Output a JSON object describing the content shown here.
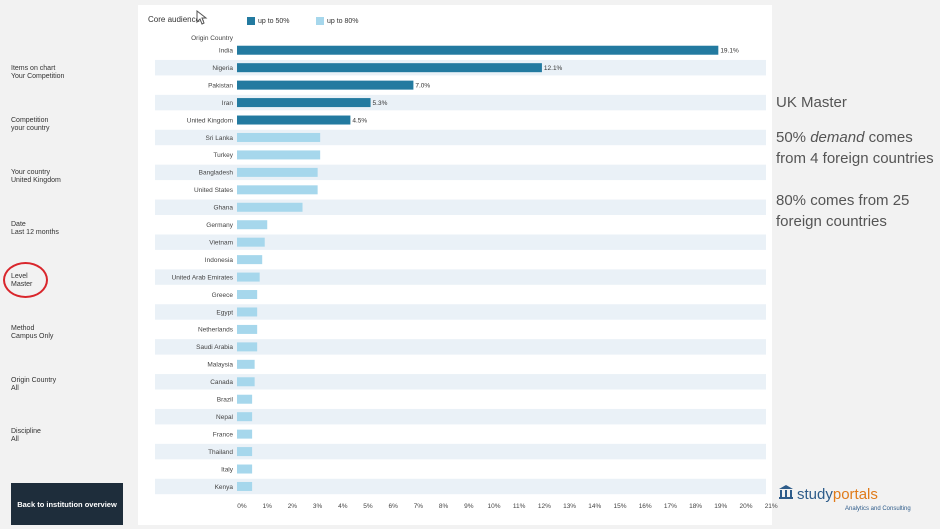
{
  "filters": [
    {
      "label": "Items on chart",
      "value": "Your Competition"
    },
    {
      "label": "Competition",
      "value": "your country"
    },
    {
      "label": "Your country",
      "value": "United Kingdom"
    },
    {
      "label": "Date",
      "value": "Last 12 months"
    },
    {
      "label": "Level",
      "value": "Master"
    },
    {
      "label": "Method",
      "value": "Campus Only"
    },
    {
      "label": "Origin Country",
      "value": "All"
    },
    {
      "label": "Discipline",
      "value": "All"
    }
  ],
  "back_button": "Back to institution overview",
  "legend": {
    "title": "Core audiences",
    "items": [
      {
        "label": "up to 50%",
        "color": "#237aa0"
      },
      {
        "label": "up to 80%",
        "color": "#a6d7ec"
      }
    ]
  },
  "row_header": "Origin Country",
  "commentary": {
    "heading": "UK Master",
    "line1_pre": "50% ",
    "line1_em": "demand",
    "line1_post": " comes from 4  foreign countries",
    "line2": "80% comes from 25 foreign countries"
  },
  "logo": {
    "name_pre": "study",
    "name_accent": "portals",
    "subtitle": "Analytics and Consulting"
  },
  "chart_data": {
    "type": "bar",
    "orientation": "horizontal",
    "categories": [
      "India",
      "Nigeria",
      "Pakistan",
      "Iran",
      "United Kingdom",
      "Sri Lanka",
      "Turkey",
      "Bangladesh",
      "United States",
      "Ghana",
      "Germany",
      "Vietnam",
      "Indonesia",
      "United Arab Emirates",
      "Greece",
      "Egypt",
      "Netherlands",
      "Saudi Arabia",
      "Malaysia",
      "Canada",
      "Brazil",
      "Nepal",
      "France",
      "Thailand",
      "Italy",
      "Kenya"
    ],
    "values": [
      19.1,
      12.1,
      7.0,
      5.3,
      4.5,
      3.3,
      3.3,
      3.2,
      3.2,
      2.6,
      1.2,
      1.1,
      1.0,
      0.9,
      0.8,
      0.8,
      0.8,
      0.8,
      0.7,
      0.7,
      0.6,
      0.6,
      0.6,
      0.6,
      0.6,
      0.6
    ],
    "data_labels": [
      "19.1%",
      "12.1%",
      "7.0%",
      "5.3%",
      "4.5%",
      "",
      "",
      "",
      "",
      "",
      "",
      "",
      "",
      "",
      "",
      "",
      "",
      "",
      "",
      "",
      "",
      "",
      "",
      "",
      "",
      ""
    ],
    "group": [
      "up to 50%",
      "up to 50%",
      "up to 50%",
      "up to 50%",
      "up to 50%",
      "up to 80%",
      "up to 80%",
      "up to 80%",
      "up to 80%",
      "up to 80%",
      "up to 80%",
      "up to 80%",
      "up to 80%",
      "up to 80%",
      "up to 80%",
      "up to 80%",
      "up to 80%",
      "up to 80%",
      "up to 80%",
      "up to 80%",
      "up to 80%",
      "up to 80%",
      "up to 80%",
      "up to 80%",
      "up to 80%",
      "up to 80%"
    ],
    "x_ticks": [
      "0%",
      "1%",
      "2%",
      "3%",
      "4%",
      "5%",
      "6%",
      "7%",
      "8%",
      "9%",
      "10%",
      "11%",
      "12%",
      "13%",
      "14%",
      "15%",
      "16%",
      "17%",
      "18%",
      "19%",
      "20%",
      "21%"
    ],
    "xlim": [
      0,
      21
    ],
    "grid": false,
    "legend_position": "top-left"
  }
}
